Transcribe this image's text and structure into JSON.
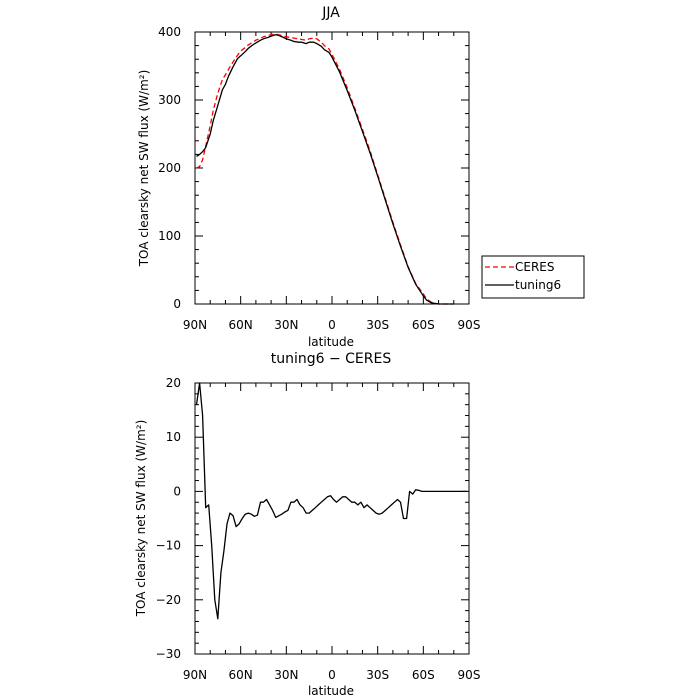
{
  "colors": {
    "CERES": "#ff0000",
    "tuning6": "#000000"
  },
  "legend": {
    "placement": "right-middle",
    "entries": [
      "CERES",
      "tuning6"
    ]
  },
  "chart_data": [
    {
      "type": "line",
      "title": "JJA",
      "xlabel": "latitude",
      "ylabel": "TOA clearsky net SW flux (W/m²)",
      "xlim": [
        90,
        -90
      ],
      "ylim": [
        0,
        400
      ],
      "x_ticks": [
        90,
        60,
        30,
        0,
        -30,
        -60,
        -90
      ],
      "x_tick_labels": [
        "90N",
        "60N",
        "30N",
        "0",
        "30S",
        "60S",
        "90S"
      ],
      "y_ticks": [
        0,
        100,
        200,
        300,
        400
      ],
      "y_tick_labels": [
        "0",
        "100",
        "200",
        "300",
        "400"
      ],
      "grid": false,
      "series": [
        {
          "name": "CERES",
          "style": "dashed",
          "color": "#ff0000",
          "x": [
            89,
            87,
            85,
            83,
            80,
            78,
            75,
            72,
            70,
            68,
            65,
            62,
            60,
            57,
            55,
            52,
            50,
            47,
            45,
            42,
            40,
            37,
            35,
            32,
            30,
            27,
            25,
            22,
            20,
            17,
            15,
            12,
            10,
            7,
            5,
            2,
            0,
            -5,
            -10,
            -15,
            -20,
            -25,
            -30,
            -35,
            -40,
            -45,
            -50,
            -55,
            -60,
            -62,
            -65,
            -67,
            -70,
            -72,
            -75,
            -78,
            -80
          ],
          "y": [
            200,
            202,
            212,
            232,
            262,
            285,
            310,
            330,
            337,
            345,
            356,
            366,
            372,
            377,
            381,
            385,
            388,
            391,
            393,
            395,
            396,
            397,
            396,
            394,
            393,
            392,
            391,
            390,
            389,
            388,
            390,
            391,
            390,
            385,
            380,
            375,
            367,
            345,
            318,
            288,
            257,
            225,
            190,
            155,
            120,
            87,
            55,
            30,
            15,
            8,
            3,
            1,
            0,
            0,
            0,
            0,
            0
          ]
        },
        {
          "name": "tuning6",
          "style": "solid",
          "color": "#000000",
          "x": [
            89,
            87,
            85,
            83,
            80,
            78,
            75,
            72,
            70,
            68,
            65,
            62,
            60,
            57,
            55,
            52,
            50,
            47,
            45,
            42,
            40,
            37,
            35,
            32,
            30,
            27,
            25,
            22,
            20,
            17,
            15,
            12,
            10,
            7,
            5,
            2,
            0,
            -5,
            -10,
            -15,
            -20,
            -25,
            -30,
            -35,
            -40,
            -45,
            -50,
            -55,
            -60,
            -62,
            -65,
            -67,
            -70,
            -72,
            -75,
            -78,
            -80
          ],
          "y": [
            217,
            220,
            224,
            230,
            250,
            270,
            292,
            315,
            323,
            335,
            349,
            361,
            365,
            371,
            376,
            381,
            384,
            388,
            390,
            392,
            394,
            396,
            395,
            392,
            390,
            388,
            386,
            385,
            385,
            383,
            385,
            385,
            383,
            379,
            374,
            370,
            363,
            341,
            314,
            285,
            254,
            222,
            188,
            153,
            118,
            85,
            54,
            29,
            12,
            6,
            2,
            1,
            0,
            0,
            0,
            0,
            0
          ]
        }
      ]
    },
    {
      "type": "line",
      "title": "tuning6 − CERES",
      "xlabel": "latitude",
      "ylabel": "TOA clearsky net SW flux (W/m²)",
      "xlim": [
        90,
        -90
      ],
      "ylim": [
        -30,
        20
      ],
      "x_ticks": [
        90,
        60,
        30,
        0,
        -30,
        -60,
        -90
      ],
      "x_tick_labels": [
        "90N",
        "60N",
        "30N",
        "0",
        "30S",
        "60S",
        "90S"
      ],
      "y_ticks": [
        -30,
        -20,
        -10,
        0,
        10,
        20
      ],
      "y_tick_labels": [
        "−30",
        "−20",
        "−10",
        "0",
        "10",
        "20"
      ],
      "grid": false,
      "series": [
        {
          "style": "solid",
          "color": "#000000",
          "x": [
            89,
            87,
            85,
            83,
            81,
            79,
            77,
            75,
            73,
            71,
            69,
            67,
            65,
            63,
            61,
            59,
            57,
            55,
            53,
            51,
            49,
            47,
            45,
            43,
            41,
            39,
            37,
            35,
            33,
            31,
            29,
            27,
            25,
            23,
            21,
            19,
            17,
            15,
            13,
            11,
            9,
            7,
            5,
            3,
            1,
            -1,
            -3,
            -5,
            -7,
            -9,
            -11,
            -13,
            -15,
            -17,
            -19,
            -21,
            -23,
            -25,
            -27,
            -29,
            -31,
            -33,
            -35,
            -37,
            -39,
            -41,
            -43,
            -45,
            -47,
            -49,
            -51,
            -53,
            -55,
            -57,
            -59,
            -61,
            -63,
            -65,
            -67,
            -69,
            -71,
            -73,
            -75,
            -77,
            -79,
            -81,
            -83,
            -85,
            -87,
            -89
          ],
          "y": [
            16,
            20,
            14,
            -3,
            -2.5,
            -10,
            -20,
            -23.5,
            -15,
            -11,
            -6,
            -4,
            -4.5,
            -6.5,
            -6,
            -5,
            -4.2,
            -4,
            -4.2,
            -4.6,
            -4.4,
            -2,
            -2,
            -1.5,
            -2.5,
            -3.5,
            -4.8,
            -4.5,
            -4.2,
            -3.8,
            -3.5,
            -2,
            -2,
            -1.5,
            -2.5,
            -3,
            -4,
            -4,
            -3.5,
            -3,
            -2.5,
            -2,
            -1.5,
            -1,
            -0.8,
            -1.5,
            -2,
            -1.5,
            -1,
            -1,
            -1.5,
            -2,
            -2,
            -2.5,
            -2,
            -3,
            -2.5,
            -3,
            -3.5,
            -4,
            -4.2,
            -4,
            -3.5,
            -3,
            -2.5,
            -2,
            -1.5,
            -2,
            -5,
            -5,
            0,
            -0.5,
            0.3,
            0.2,
            0,
            0,
            0,
            0,
            0,
            0,
            0,
            0,
            0,
            0,
            0,
            0,
            0,
            0,
            0,
            0
          ]
        }
      ]
    }
  ]
}
